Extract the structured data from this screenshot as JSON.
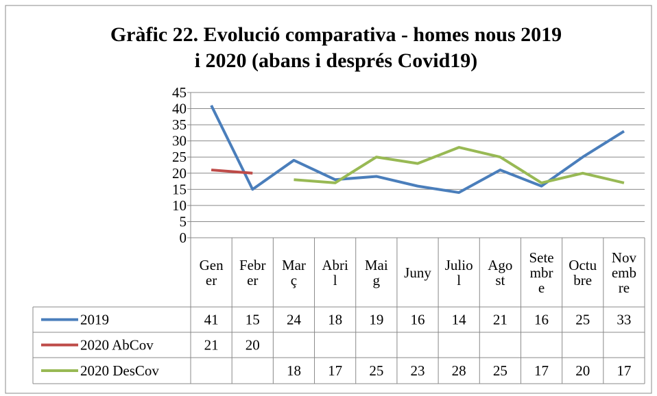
{
  "chart_data": {
    "type": "line",
    "title": [
      "Gràfic 22. Evolució comparativa - homes nous 2019",
      "i 2020 (abans i després Covid19)"
    ],
    "categories": [
      "Gener",
      "Febrer",
      "Març",
      "Abril",
      "Maig",
      "Juny",
      "Juliol",
      "Agost",
      "Setembre",
      "Octubre",
      "Novembre"
    ],
    "series": [
      {
        "name": "2019",
        "color": "#4a7ebb",
        "values": [
          41,
          15,
          24,
          18,
          19,
          16,
          14,
          21,
          16,
          25,
          33
        ]
      },
      {
        "name": "2020 AbCov",
        "color": "#be4b48",
        "values": [
          21,
          20,
          null,
          null,
          null,
          null,
          null,
          null,
          null,
          null,
          null
        ]
      },
      {
        "name": "2020 DesCov",
        "color": "#98b954",
        "values": [
          null,
          null,
          18,
          17,
          25,
          23,
          28,
          25,
          17,
          20,
          17
        ]
      }
    ],
    "ylim": [
      0,
      45
    ],
    "yticks": [
      0,
      5,
      10,
      15,
      20,
      25,
      30,
      35,
      40,
      45
    ],
    "grid": true
  }
}
